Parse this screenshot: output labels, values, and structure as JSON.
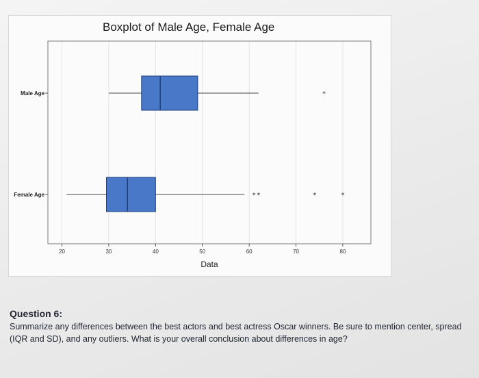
{
  "chart_data": {
    "type": "boxplot",
    "title": "Boxplot of Male Age, Female Age",
    "xlabel": "Data",
    "xlim": [
      17,
      86
    ],
    "xticks": [
      20,
      30,
      40,
      50,
      60,
      70,
      80
    ],
    "grid": true,
    "series": [
      {
        "name": "Male Age",
        "whisker_low": 30,
        "q1": 37,
        "median": 41,
        "q3": 49,
        "whisker_high": 62,
        "outliers": [
          76
        ]
      },
      {
        "name": "Female Age",
        "whisker_low": 21,
        "q1": 29.5,
        "median": 34,
        "q3": 40,
        "whisker_high": 59,
        "outliers": [
          61,
          62,
          74,
          80
        ]
      }
    ],
    "box_color": "#4a78c8"
  },
  "question": {
    "title": "Question 6:",
    "body": "Summarize any differences between the best actors and best actress Oscar winners. Be sure to mention center, spread (IQR and SD), and any outliers. What is your overall conclusion about differences in age?"
  }
}
